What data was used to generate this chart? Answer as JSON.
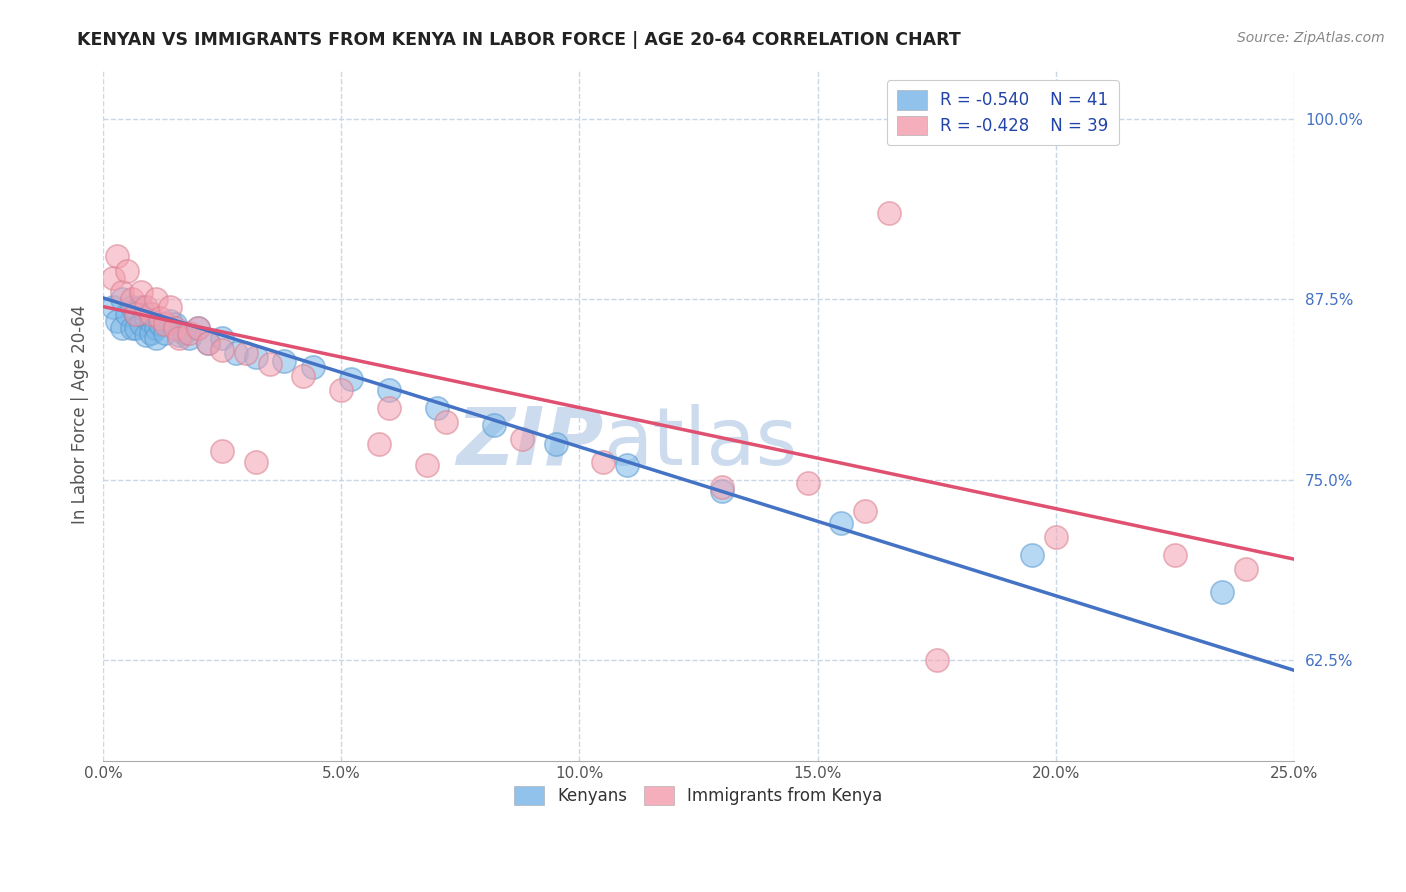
{
  "title": "KENYAN VS IMMIGRANTS FROM KENYA IN LABOR FORCE | AGE 20-64 CORRELATION CHART",
  "source": "Source: ZipAtlas.com",
  "ylabel": "In Labor Force | Age 20-64",
  "xlim": [
    0.0,
    0.25
  ],
  "ylim": [
    0.555,
    1.035
  ],
  "yticks": [
    0.625,
    0.75,
    0.875,
    1.0
  ],
  "ytick_labels": [
    "62.5%",
    "75.0%",
    "87.5%",
    "100.0%"
  ],
  "xticks": [
    0.0,
    0.05,
    0.1,
    0.15,
    0.2,
    0.25
  ],
  "xtick_labels": [
    "0.0%",
    "5.0%",
    "10.0%",
    "15.0%",
    "20.0%",
    "25.0%"
  ],
  "legend_r1": "R = -0.540",
  "legend_n1": "N = 41",
  "legend_r2": "R = -0.428",
  "legend_n2": "N = 39",
  "blue_color": "#7db8e8",
  "blue_edge_color": "#7db8e8",
  "pink_color": "#f4a0b0",
  "pink_edge_color": "#f4a0b0",
  "blue_line_color": "#4472c4",
  "pink_line_color": "#e05070",
  "watermark": "ZIPatlas",
  "watermark_color": "#ccdcee",
  "grid_color": "#c8d8e8",
  "blue_x": [
    0.002,
    0.003,
    0.004,
    0.004,
    0.005,
    0.006,
    0.006,
    0.007,
    0.007,
    0.008,
    0.008,
    0.009,
    0.009,
    0.01,
    0.01,
    0.011,
    0.011,
    0.012,
    0.013,
    0.014,
    0.015,
    0.016,
    0.017,
    0.018,
    0.02,
    0.022,
    0.025,
    0.028,
    0.032,
    0.038,
    0.044,
    0.052,
    0.06,
    0.07,
    0.082,
    0.095,
    0.11,
    0.13,
    0.155,
    0.195,
    0.235
  ],
  "blue_y": [
    0.87,
    0.86,
    0.875,
    0.855,
    0.865,
    0.87,
    0.855,
    0.865,
    0.855,
    0.87,
    0.858,
    0.862,
    0.85,
    0.86,
    0.852,
    0.855,
    0.848,
    0.858,
    0.852,
    0.86,
    0.858,
    0.85,
    0.852,
    0.848,
    0.855,
    0.845,
    0.848,
    0.838,
    0.835,
    0.832,
    0.828,
    0.82,
    0.812,
    0.8,
    0.788,
    0.775,
    0.76,
    0.742,
    0.72,
    0.698,
    0.672
  ],
  "pink_x": [
    0.002,
    0.003,
    0.004,
    0.005,
    0.006,
    0.007,
    0.008,
    0.009,
    0.01,
    0.011,
    0.012,
    0.013,
    0.014,
    0.015,
    0.016,
    0.018,
    0.02,
    0.022,
    0.025,
    0.03,
    0.035,
    0.042,
    0.05,
    0.06,
    0.072,
    0.088,
    0.105,
    0.13,
    0.16,
    0.2,
    0.225,
    0.24,
    0.165,
    0.175,
    0.058,
    0.068,
    0.025,
    0.032,
    0.148
  ],
  "pink_y": [
    0.89,
    0.905,
    0.88,
    0.895,
    0.875,
    0.865,
    0.88,
    0.87,
    0.865,
    0.875,
    0.862,
    0.858,
    0.87,
    0.855,
    0.848,
    0.852,
    0.855,
    0.845,
    0.84,
    0.838,
    0.83,
    0.822,
    0.812,
    0.8,
    0.79,
    0.778,
    0.762,
    0.745,
    0.728,
    0.71,
    0.698,
    0.688,
    0.935,
    0.625,
    0.775,
    0.76,
    0.77,
    0.762,
    0.748
  ],
  "blue_trend_x": [
    0.0,
    0.25
  ],
  "blue_trend_y": [
    0.876,
    0.618
  ],
  "pink_trend_x": [
    0.0,
    0.25
  ],
  "pink_trend_y": [
    0.87,
    0.695
  ]
}
